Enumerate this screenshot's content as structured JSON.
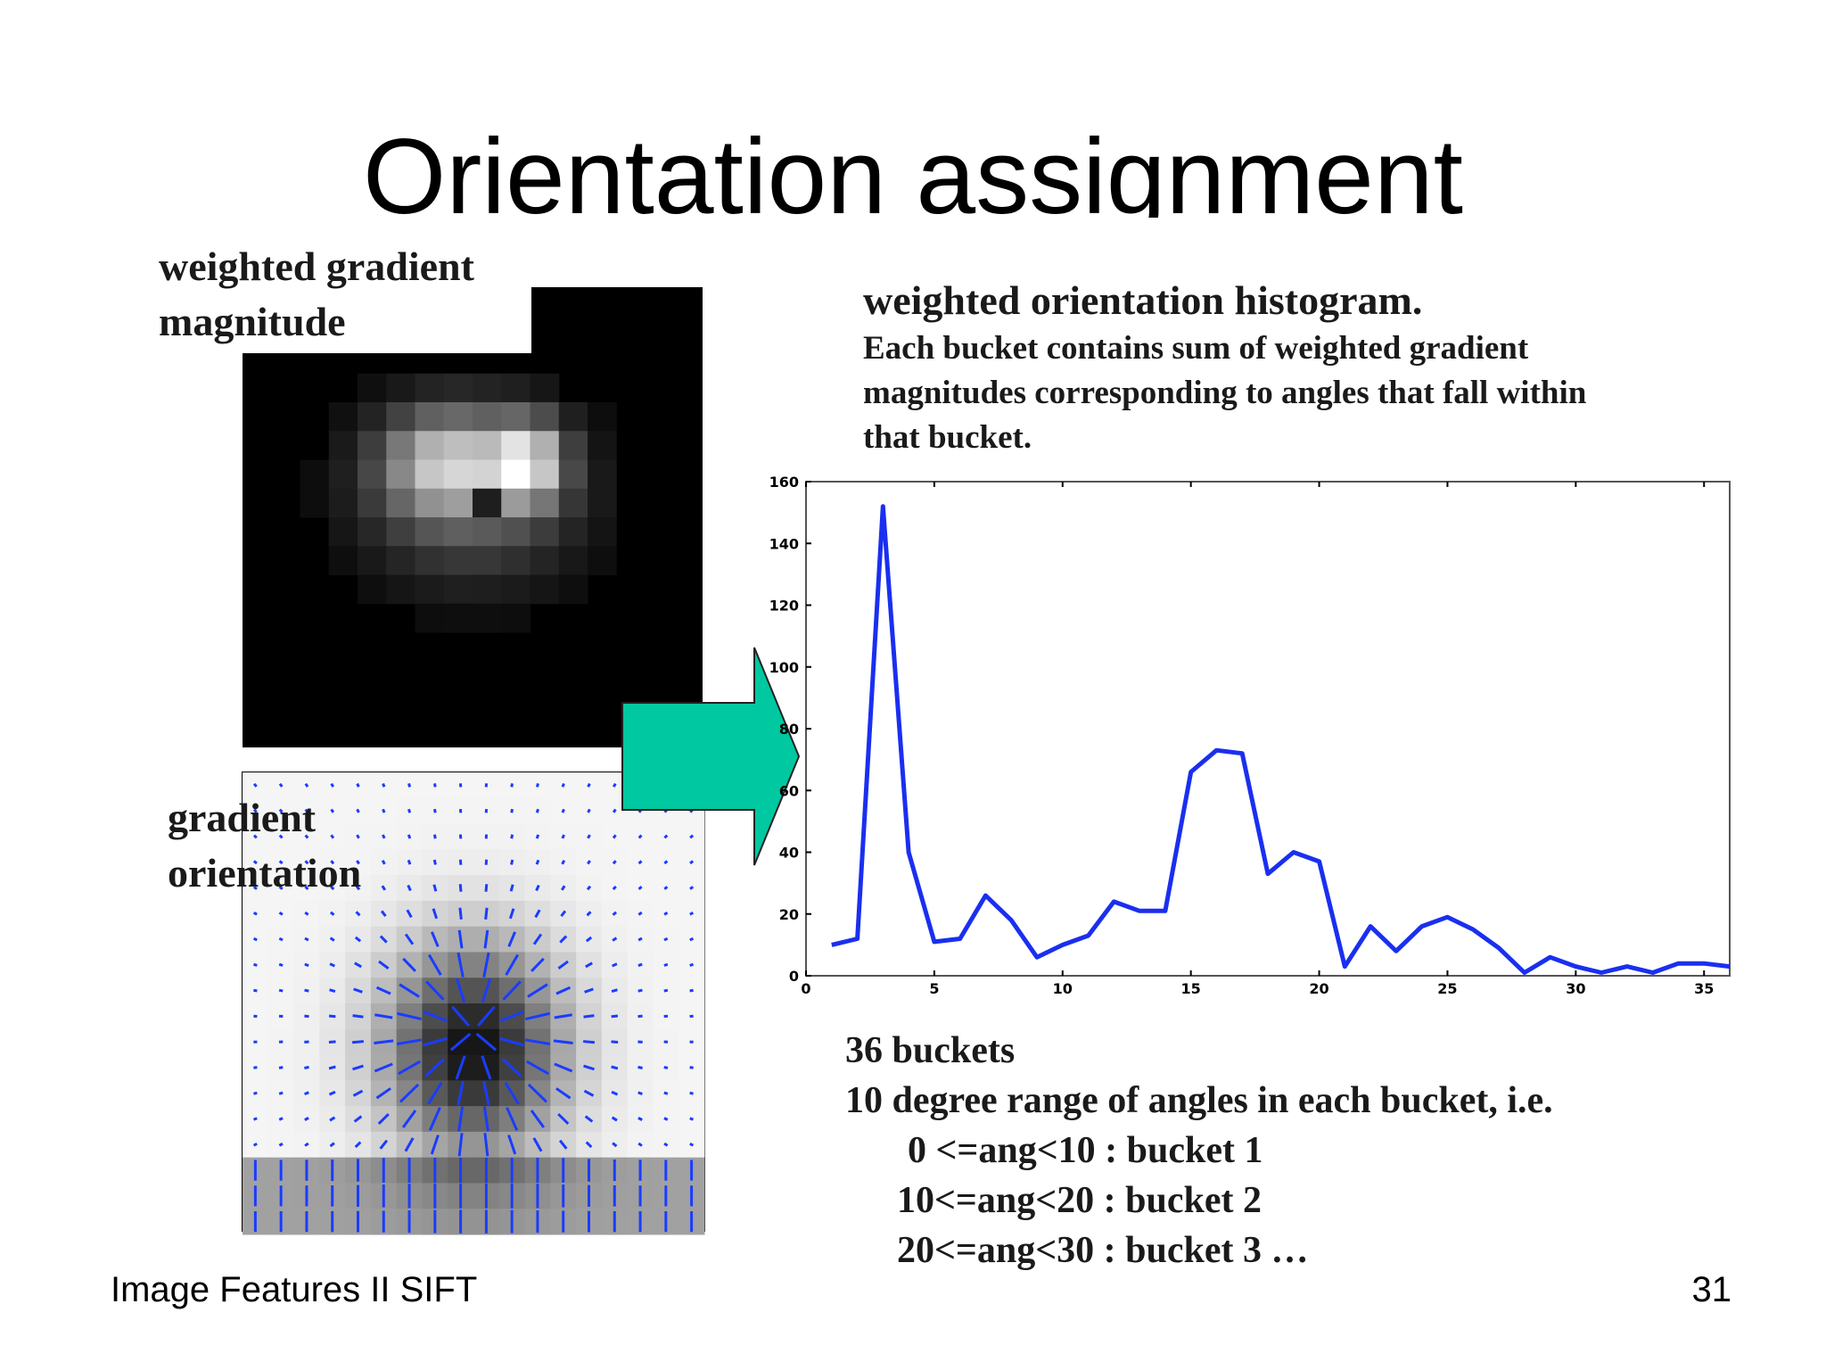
{
  "slide": {
    "title": "Orientation assignment",
    "footer_left": "Image Features II SIFT",
    "page_number": "31"
  },
  "left_panel": {
    "magnitude_label_line1": "weighted gradient",
    "magnitude_label_line2": "magnitude",
    "orientation_label_line1": "gradient",
    "orientation_label_line2": "orientation"
  },
  "histogram_text": {
    "title": "weighted orientation histogram.",
    "description_line1": "Each bucket contains sum of weighted gradient",
    "description_line2": "magnitudes corresponding to angles that fall within",
    "description_line3": "that bucket."
  },
  "notes": {
    "line1": "36 buckets",
    "line2": "10 degree range of angles in each bucket, i.e.",
    "line3": "0 <=ang<10 : bucket 1",
    "line4": "10<=ang<20 : bucket 2",
    "line5": "20<=ang<30 : bucket 3 …"
  },
  "colors": {
    "arrow_fill": "#00c8a0",
    "line_color": "#1a2ff0",
    "vector_color": "#1a3cff"
  },
  "chart_data": {
    "type": "line",
    "x": [
      1,
      2,
      3,
      4,
      5,
      6,
      7,
      8,
      9,
      10,
      11,
      12,
      13,
      14,
      15,
      16,
      17,
      18,
      19,
      20,
      21,
      22,
      23,
      24,
      25,
      26,
      27,
      28,
      29,
      30,
      31,
      32,
      33,
      34,
      35,
      36
    ],
    "values": [
      10,
      12,
      152,
      40,
      11,
      12,
      26,
      18,
      6,
      10,
      13,
      24,
      21,
      21,
      66,
      73,
      72,
      33,
      40,
      37,
      3,
      16,
      8,
      16,
      19,
      15,
      9,
      1,
      6,
      3,
      1,
      3,
      1,
      4,
      4,
      3
    ],
    "xlim": [
      0,
      36
    ],
    "ylim": [
      0,
      160
    ],
    "xticks": [
      0,
      5,
      10,
      15,
      20,
      25,
      30,
      35
    ],
    "yticks": [
      0,
      20,
      40,
      60,
      80,
      100,
      120,
      140,
      160
    ],
    "title": "",
    "xlabel": "",
    "ylabel": "",
    "grid": false
  }
}
